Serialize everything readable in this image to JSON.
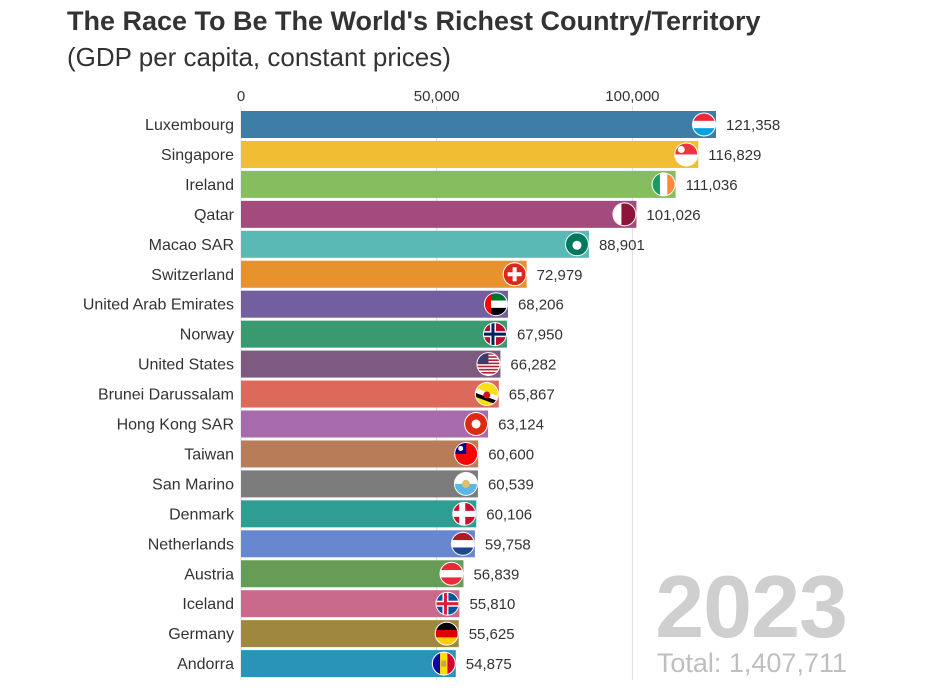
{
  "title": "The Race To Be The World's Richest Country/Territory",
  "subtitle": "(GDP per capita, constant prices)",
  "year": "2023",
  "total": "Total: 1,407,711",
  "chart_data": {
    "type": "bar",
    "orientation": "horizontal",
    "categories": [
      "Luxembourg",
      "Singapore",
      "Ireland",
      "Qatar",
      "Macao SAR",
      "Switzerland",
      "United Arab Emirates",
      "Norway",
      "United States",
      "Brunei Darussalam",
      "Hong Kong SAR",
      "Taiwan",
      "San Marino",
      "Denmark",
      "Netherlands",
      "Austria",
      "Iceland",
      "Germany",
      "Andorra"
    ],
    "values": [
      121358,
      116829,
      111036,
      101026,
      88901,
      72979,
      68206,
      67950,
      66282,
      65867,
      63124,
      60600,
      60539,
      60106,
      59758,
      56839,
      55810,
      55625,
      54875
    ],
    "value_labels": [
      "121,358",
      "116,829",
      "111,036",
      "101,026",
      "88,901",
      "72,979",
      "68,206",
      "67,950",
      "66,282",
      "65,867",
      "63,124",
      "60,600",
      "60,539",
      "60,106",
      "59,758",
      "56,839",
      "55,810",
      "55,625",
      "54,875"
    ],
    "colors": [
      "#3e7ea6",
      "#f0bd33",
      "#86bd5f",
      "#a24b7c",
      "#5ab8b5",
      "#e7922d",
      "#735e9f",
      "#3a9a6f",
      "#7e5a80",
      "#dc6a5a",
      "#a76aab",
      "#b87c58",
      "#7b7b7b",
      "#2e9e93",
      "#6787cf",
      "#669c56",
      "#c9698b",
      "#a0873f",
      "#2993b8"
    ],
    "flag_icons": [
      "luxembourg-flag-icon",
      "singapore-flag-icon",
      "ireland-flag-icon",
      "qatar-flag-icon",
      "macao-flag-icon",
      "switzerland-flag-icon",
      "uae-flag-icon",
      "norway-flag-icon",
      "usa-flag-icon",
      "brunei-flag-icon",
      "hong-kong-flag-icon",
      "taiwan-flag-icon",
      "san-marino-flag-icon",
      "denmark-flag-icon",
      "netherlands-flag-icon",
      "austria-flag-icon",
      "iceland-flag-icon",
      "germany-flag-icon",
      "andorra-flag-icon"
    ],
    "x_ticks": [
      0,
      50000,
      100000
    ],
    "x_tick_labels": [
      "0",
      "50,000",
      "100,000"
    ],
    "xlim": [
      0,
      121358
    ],
    "grid": true
  }
}
